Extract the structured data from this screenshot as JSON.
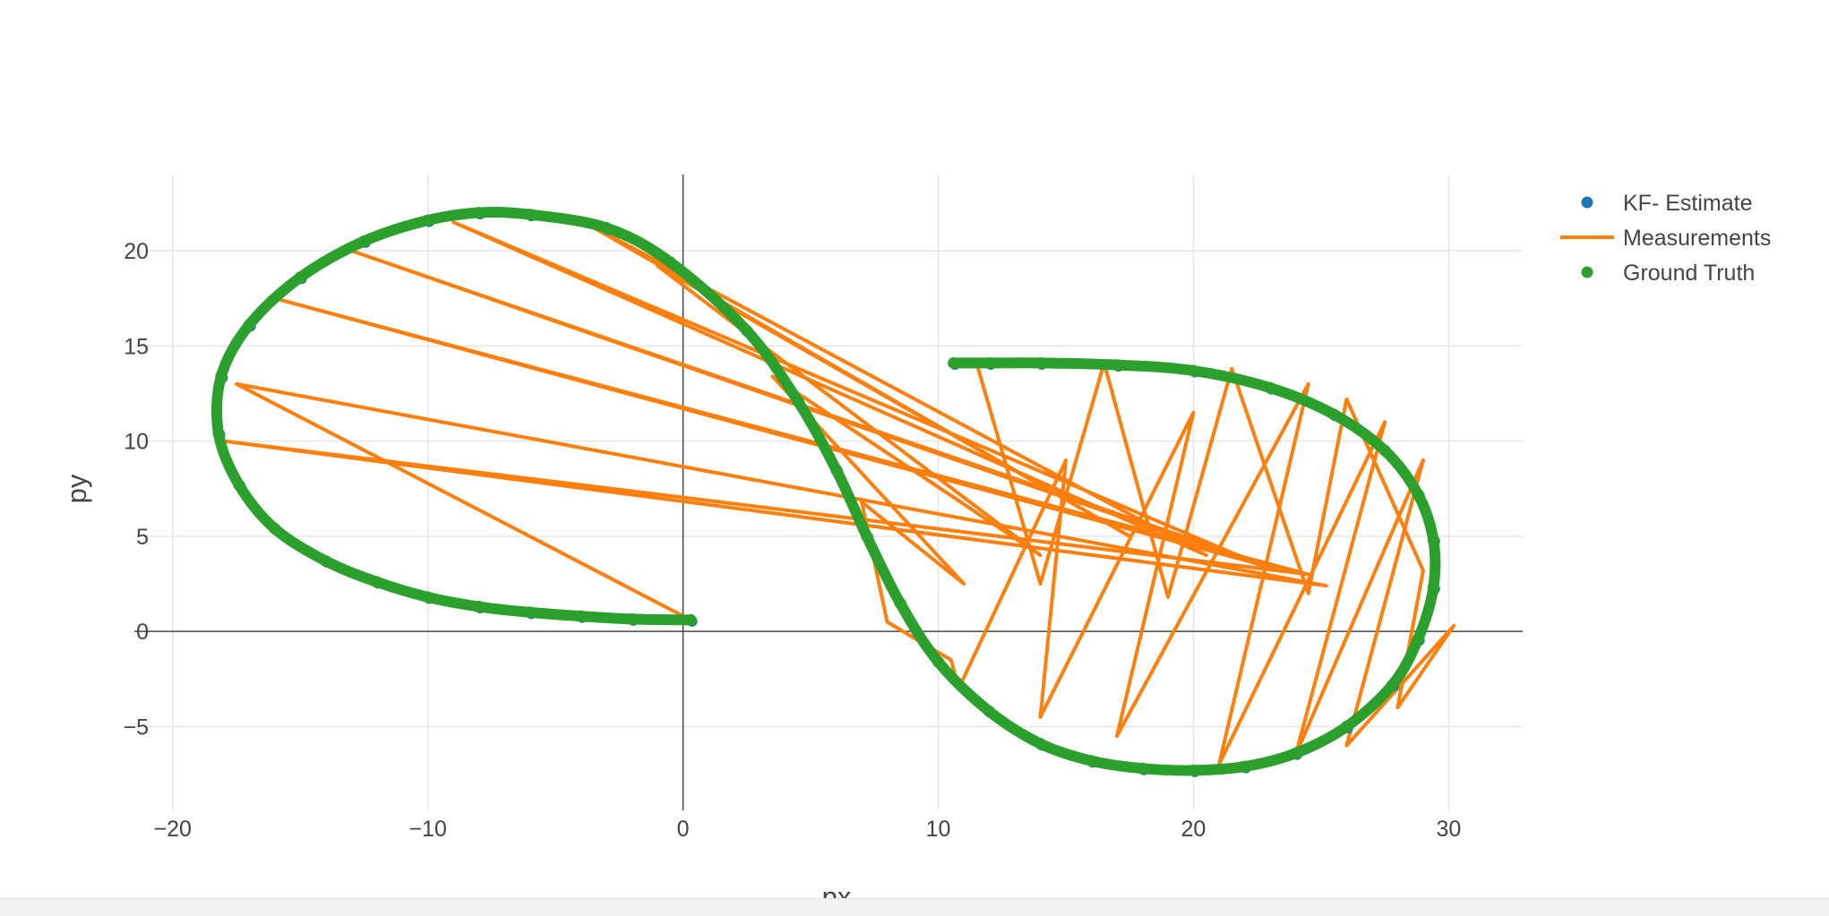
{
  "chart_data": {
    "type": "scatter",
    "title": "",
    "xlabel": "px",
    "ylabel": "py",
    "xlim": [
      -21.5,
      32.9
    ],
    "ylim": [
      -9.4,
      24.0
    ],
    "x_ticks": [
      -20,
      -10,
      0,
      10,
      20,
      30
    ],
    "x_tick_labels": [
      "−20",
      "−10",
      "0",
      "10",
      "20",
      "30"
    ],
    "y_ticks": [
      -5,
      0,
      5,
      10,
      15,
      20
    ],
    "y_tick_labels": [
      "−5",
      "0",
      "5",
      "10",
      "15",
      "20"
    ],
    "grid": true,
    "legend_position": "top-right",
    "colors": {
      "kf_estimate": "#1f77b4",
      "measurements": "#ff7f0e",
      "ground_truth": "#2ca02c"
    },
    "series": [
      {
        "name": "KF- Estimate",
        "mode": "markers",
        "color": "#1f77b4",
        "x": [
          0.3,
          -2,
          -4,
          -6,
          -8,
          -10,
          -12,
          -14,
          -16,
          -17.4,
          -18.2,
          -18.1,
          -17,
          -15,
          -12.5,
          -10,
          -8,
          -6,
          -3,
          -0.5,
          2.5,
          4.5,
          6,
          7.2,
          8.5,
          10,
          12,
          14,
          16,
          18,
          20,
          22,
          24,
          26,
          27.8,
          28.8,
          29.4,
          29.4,
          28.8,
          27.5,
          25.5,
          23,
          20,
          17,
          14,
          12,
          10.6
        ],
        "y": [
          0.6,
          0.65,
          0.8,
          1.0,
          1.3,
          1.8,
          2.6,
          3.7,
          5.4,
          7.7,
          10.4,
          13.4,
          16.1,
          18.6,
          20.5,
          21.6,
          22.0,
          21.9,
          21.2,
          19.4,
          15.8,
          12.1,
          8.5,
          5.0,
          1.5,
          -1.6,
          -4.2,
          -5.9,
          -6.8,
          -7.2,
          -7.3,
          -7.1,
          -6.4,
          -5.0,
          -2.8,
          -0.4,
          2.3,
          4.8,
          7.2,
          9.5,
          11.4,
          12.8,
          13.7,
          14.0,
          14.1,
          14.1,
          14.1
        ]
      },
      {
        "name": "Measurements",
        "mode": "lines",
        "color": "#ff7f0e",
        "x": [
          0.3,
          -17.5,
          25.2,
          -18.0,
          24.5,
          -16.0,
          23.5,
          -13.0,
          22.8,
          -9.0,
          20.5,
          -4.0,
          17.5,
          -1.0,
          14.0,
          3.5,
          11.0,
          7.0,
          8.0,
          10.5,
          10.8,
          15.0,
          14.0,
          20.0,
          17.0,
          24.5,
          21.0,
          27.5,
          24.0,
          29.0,
          26.0,
          30.2,
          28.0,
          29.0,
          26.0,
          24.5,
          21.5,
          19.0,
          16.5,
          14.0,
          11.5,
          10.6
        ],
        "y": [
          0.6,
          13.0,
          2.4,
          10.0,
          3.0,
          17.5,
          3.2,
          20.0,
          3.4,
          21.5,
          4.0,
          21.6,
          5.0,
          19.2,
          4.0,
          13.4,
          2.5,
          6.8,
          0.5,
          -1.5,
          -3.0,
          9.0,
          -4.5,
          11.5,
          -5.5,
          13.0,
          -7.0,
          11.0,
          -6.5,
          9.0,
          -6.0,
          0.3,
          -4.0,
          3.2,
          12.2,
          2.0,
          13.8,
          1.8,
          14.1,
          2.5,
          14.1,
          14.1
        ]
      },
      {
        "name": "Ground Truth",
        "mode": "markers",
        "color": "#2ca02c",
        "x": [
          0.3,
          -2,
          -4,
          -6,
          -8,
          -10,
          -12,
          -14,
          -16,
          -17.4,
          -18.2,
          -18.1,
          -17,
          -15,
          -12.5,
          -10,
          -8,
          -6,
          -3,
          -0.5,
          2.5,
          4.5,
          6,
          7.2,
          8.5,
          10,
          12,
          14,
          16,
          18,
          20,
          22,
          24,
          26,
          27.8,
          28.8,
          29.4,
          29.4,
          28.8,
          27.5,
          25.5,
          23,
          20,
          17,
          14,
          12,
          10.6
        ],
        "y": [
          0.6,
          0.65,
          0.8,
          1.0,
          1.3,
          1.8,
          2.6,
          3.7,
          5.4,
          7.7,
          10.4,
          13.4,
          16.1,
          18.6,
          20.5,
          21.6,
          22.0,
          21.9,
          21.2,
          19.4,
          15.8,
          12.1,
          8.5,
          5.0,
          1.5,
          -1.6,
          -4.2,
          -5.9,
          -6.8,
          -7.2,
          -7.3,
          -7.1,
          -6.4,
          -5.0,
          -2.8,
          -0.4,
          2.3,
          4.8,
          7.2,
          9.5,
          11.4,
          12.8,
          13.7,
          14.0,
          14.1,
          14.1,
          14.1
        ]
      }
    ]
  }
}
